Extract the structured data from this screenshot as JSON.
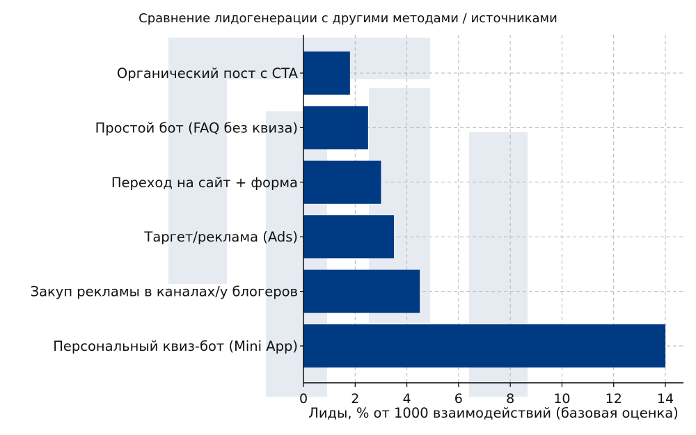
{
  "chart_data": {
    "type": "bar",
    "orientation": "horizontal",
    "title": "Сравнение лидогенерации с другими методами / источниками",
    "xlabel": "Лиды, % от 1000 взаимодействий (базовая оценка)",
    "ylabel": "",
    "categories": [
      "Органический пост с CTA",
      "Простой бот (FAQ без квиза)",
      "Переход на сайт + форма",
      "Таргет/реклама (Ads)",
      "Закуп рекламы в каналах/у блогеров",
      "Персональный квиз-бот (Mini App)"
    ],
    "values": [
      1.8,
      2.5,
      3.0,
      3.5,
      4.5,
      14.0
    ],
    "xlim": [
      0,
      14.7
    ],
    "xticks": [
      0,
      2,
      4,
      6,
      8,
      10,
      12,
      14
    ],
    "grid": true,
    "bar_color": "#003a82",
    "grid_color": "#b5b5b5",
    "background_decoration_color": "#e6ebf2"
  }
}
